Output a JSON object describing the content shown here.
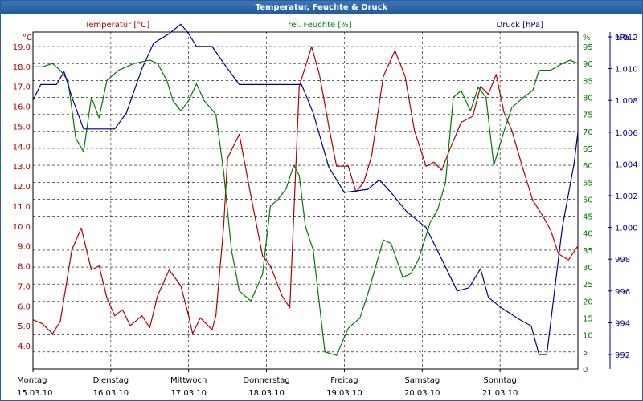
{
  "window": {
    "title": "Temperatur, Feuchte & Druck"
  },
  "colors": {
    "temperature": "#b00000",
    "humidity": "#007a00",
    "pressure": "#00008b",
    "grid": "#000000",
    "title_bar": "#2a5d9a"
  },
  "chart_data": {
    "type": "line",
    "series_labels": [
      "Temperatur [°C]",
      "rel. Feuchte [%]",
      "Druck [hPa]"
    ],
    "axes": {
      "temperature": {
        "unit": "°C",
        "range": [
          4.0,
          19.0
        ],
        "ticks": [
          "4.0",
          "5.0",
          "6.0",
          "7.0",
          "8.0",
          "9.0",
          "10.0",
          "11.0",
          "12.0",
          "13.0",
          "14.0",
          "15.0",
          "16.0",
          "17.0",
          "18.0",
          "19.0"
        ]
      },
      "humidity": {
        "unit": "%",
        "range": [
          0,
          95
        ],
        "ticks": [
          "0",
          "5",
          "10",
          "15",
          "20",
          "25",
          "30",
          "35",
          "40",
          "45",
          "50",
          "55",
          "60",
          "65",
          "70",
          "75",
          "80",
          "85",
          "90",
          "95"
        ]
      },
      "pressure": {
        "unit": "hPa",
        "range": [
          992,
          1012
        ],
        "ticks": [
          "992",
          "994",
          "996",
          "998",
          "1.000",
          "1.002",
          "1.004",
          "1.006",
          "1.008",
          "1.010",
          "1.012"
        ]
      }
    },
    "x_range": [
      0,
      7
    ],
    "grid": true,
    "x_labels": [
      {
        "day": "Montag",
        "date": "15.03.10"
      },
      {
        "day": "Dienstag",
        "date": "16.03.10"
      },
      {
        "day": "Mittwoch",
        "date": "17.03.10"
      },
      {
        "day": "Donnerstag",
        "date": "18.03.10"
      },
      {
        "day": "Freitag",
        "date": "19.03.10"
      },
      {
        "day": "Samstag",
        "date": "20.03.10"
      },
      {
        "day": "Sonntag",
        "date": "21.03.10"
      }
    ],
    "series": [
      {
        "name": "Temperatur [°C]",
        "axis": "temperature",
        "points": [
          [
            0.0,
            5.3
          ],
          [
            0.12,
            5.1
          ],
          [
            0.25,
            4.6
          ],
          [
            0.35,
            5.2
          ],
          [
            0.5,
            8.8
          ],
          [
            0.62,
            9.9
          ],
          [
            0.75,
            7.8
          ],
          [
            0.85,
            8.0
          ],
          [
            0.95,
            6.4
          ],
          [
            1.05,
            5.5
          ],
          [
            1.15,
            5.8
          ],
          [
            1.25,
            5.0
          ],
          [
            1.4,
            5.5
          ],
          [
            1.5,
            4.9
          ],
          [
            1.6,
            6.5
          ],
          [
            1.75,
            7.8
          ],
          [
            1.9,
            7.0
          ],
          [
            2.0,
            5.5
          ],
          [
            2.05,
            4.6
          ],
          [
            2.15,
            5.4
          ],
          [
            2.3,
            4.8
          ],
          [
            2.35,
            5.5
          ],
          [
            2.45,
            10.0
          ],
          [
            2.5,
            13.4
          ],
          [
            2.65,
            14.6
          ],
          [
            2.8,
            11.5
          ],
          [
            2.95,
            8.5
          ],
          [
            3.05,
            8.0
          ],
          [
            3.2,
            6.5
          ],
          [
            3.3,
            5.9
          ],
          [
            3.42,
            17.0
          ],
          [
            3.58,
            19.0
          ],
          [
            3.68,
            17.6
          ],
          [
            3.8,
            15.0
          ],
          [
            3.9,
            13.0
          ],
          [
            4.05,
            13.0
          ],
          [
            4.15,
            11.7
          ],
          [
            4.25,
            12.2
          ],
          [
            4.35,
            13.5
          ],
          [
            4.5,
            17.5
          ],
          [
            4.65,
            18.8
          ],
          [
            4.78,
            17.5
          ],
          [
            4.9,
            14.8
          ],
          [
            5.05,
            13.0
          ],
          [
            5.15,
            13.2
          ],
          [
            5.25,
            12.8
          ],
          [
            5.35,
            13.8
          ],
          [
            5.5,
            15.2
          ],
          [
            5.65,
            15.5
          ],
          [
            5.75,
            17.0
          ],
          [
            5.85,
            16.6
          ],
          [
            5.95,
            17.6
          ],
          [
            6.05,
            15.7
          ],
          [
            6.15,
            14.8
          ],
          [
            6.3,
            12.8
          ],
          [
            6.42,
            11.3
          ],
          [
            6.55,
            10.5
          ],
          [
            6.65,
            9.8
          ],
          [
            6.75,
            8.6
          ],
          [
            6.88,
            8.3
          ],
          [
            7.0,
            9.0
          ]
        ]
      },
      {
        "name": "rel. Feuchte [%]",
        "axis": "humidity",
        "points": [
          [
            0.0,
            89
          ],
          [
            0.12,
            89
          ],
          [
            0.25,
            90
          ],
          [
            0.35,
            88
          ],
          [
            0.45,
            85
          ],
          [
            0.55,
            68
          ],
          [
            0.65,
            64
          ],
          [
            0.75,
            80
          ],
          [
            0.85,
            74
          ],
          [
            0.95,
            85
          ],
          [
            1.1,
            88
          ],
          [
            1.3,
            90
          ],
          [
            1.5,
            91
          ],
          [
            1.6,
            90
          ],
          [
            1.72,
            85
          ],
          [
            1.8,
            79
          ],
          [
            1.9,
            76
          ],
          [
            2.0,
            79
          ],
          [
            2.1,
            84
          ],
          [
            2.2,
            79
          ],
          [
            2.35,
            75
          ],
          [
            2.45,
            58
          ],
          [
            2.55,
            35
          ],
          [
            2.65,
            23
          ],
          [
            2.8,
            20
          ],
          [
            2.95,
            28
          ],
          [
            3.05,
            48
          ],
          [
            3.15,
            50
          ],
          [
            3.25,
            53
          ],
          [
            3.35,
            60
          ],
          [
            3.42,
            57
          ],
          [
            3.5,
            42
          ],
          [
            3.6,
            35
          ],
          [
            3.75,
            5
          ],
          [
            3.9,
            4
          ],
          [
            4.05,
            12
          ],
          [
            4.2,
            15
          ],
          [
            4.3,
            22
          ],
          [
            4.4,
            30
          ],
          [
            4.5,
            38
          ],
          [
            4.6,
            37
          ],
          [
            4.75,
            27
          ],
          [
            4.85,
            28
          ],
          [
            4.95,
            32
          ],
          [
            5.1,
            43
          ],
          [
            5.2,
            47
          ],
          [
            5.3,
            55
          ],
          [
            5.4,
            80
          ],
          [
            5.5,
            82
          ],
          [
            5.62,
            76
          ],
          [
            5.72,
            83
          ],
          [
            5.82,
            80
          ],
          [
            5.92,
            60
          ],
          [
            6.05,
            70
          ],
          [
            6.15,
            77
          ],
          [
            6.3,
            80
          ],
          [
            6.42,
            82
          ],
          [
            6.5,
            88
          ],
          [
            6.65,
            88
          ],
          [
            6.8,
            90
          ],
          [
            6.9,
            91
          ],
          [
            7.0,
            90
          ]
        ]
      },
      {
        "name": "Druck [hPa]",
        "axis": "pressure",
        "points": [
          [
            0.0,
            1008.0
          ],
          [
            0.1,
            1009.0
          ],
          [
            0.3,
            1009.0
          ],
          [
            0.4,
            1009.8
          ],
          [
            0.5,
            1008.2
          ],
          [
            0.65,
            1006.2
          ],
          [
            1.05,
            1006.2
          ],
          [
            1.2,
            1007.2
          ],
          [
            1.4,
            1010.0
          ],
          [
            1.55,
            1011.6
          ],
          [
            1.75,
            1012.2
          ],
          [
            1.9,
            1012.8
          ],
          [
            2.0,
            1012.2
          ],
          [
            2.1,
            1011.4
          ],
          [
            2.3,
            1011.4
          ],
          [
            2.5,
            1010.0
          ],
          [
            2.65,
            1009.0
          ],
          [
            3.45,
            1009.0
          ],
          [
            3.6,
            1007.2
          ],
          [
            3.8,
            1003.8
          ],
          [
            4.0,
            1002.2
          ],
          [
            4.3,
            1002.4
          ],
          [
            4.45,
            1003.0
          ],
          [
            4.6,
            1002.2
          ],
          [
            4.8,
            1001.0
          ],
          [
            5.05,
            1000.0
          ],
          [
            5.25,
            998.0
          ],
          [
            5.45,
            996.0
          ],
          [
            5.6,
            996.2
          ],
          [
            5.75,
            997.4
          ],
          [
            5.85,
            995.6
          ],
          [
            6.0,
            995.0
          ],
          [
            6.25,
            994.2
          ],
          [
            6.4,
            993.8
          ],
          [
            6.5,
            992.0
          ],
          [
            6.6,
            992.0
          ],
          [
            6.7,
            996.0
          ],
          [
            6.8,
            1000.0
          ],
          [
            6.95,
            1004.0
          ],
          [
            7.0,
            1006.0
          ]
        ]
      }
    ]
  }
}
